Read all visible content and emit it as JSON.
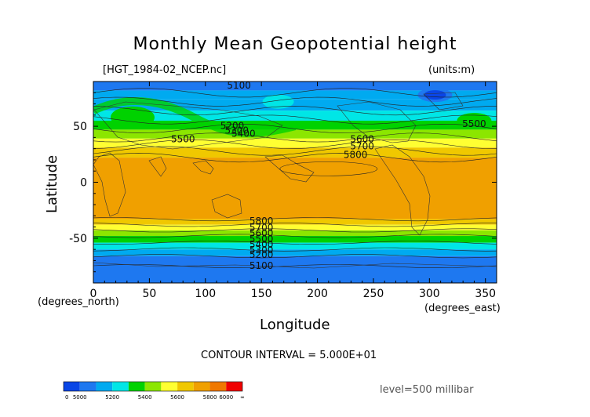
{
  "chart_data": {
    "type": "heatmap",
    "title": "Monthly Mean Geopotential height",
    "file_label": "[HGT_1984-02_NCEP.nc]",
    "units_label": "(units:m)",
    "xlabel": "Longitude",
    "ylabel": "Latitude",
    "x_unit_label": "(degrees_east)",
    "y_unit_label": "(degrees_north)",
    "xlim": [
      0,
      360
    ],
    "ylim": [
      -90,
      90
    ],
    "x_ticks": [
      "0",
      "50",
      "100",
      "150",
      "200",
      "250",
      "300",
      "350"
    ],
    "y_ticks": [
      "50",
      "0",
      "-50"
    ],
    "contour_interval_text": "CONTOUR INTERVAL = 5.000E+01",
    "level_text": "level=500 millibar",
    "contour_labels": [
      {
        "text": "5100",
        "lon": 130,
        "lat": 86
      },
      {
        "text": "5200",
        "lon": 124,
        "lat": 50
      },
      {
        "text": "5300",
        "lon": 128,
        "lat": 46
      },
      {
        "text": "5400",
        "lon": 134,
        "lat": 43
      },
      {
        "text": "5500",
        "lon": 80,
        "lat": 38
      },
      {
        "text": "5500",
        "lon": 340,
        "lat": 52
      },
      {
        "text": "5600",
        "lon": 240,
        "lat": 38
      },
      {
        "text": "5700",
        "lon": 240,
        "lat": 32
      },
      {
        "text": "5800",
        "lon": 234,
        "lat": 24
      },
      {
        "text": "5800",
        "lon": 150,
        "lat": -35
      },
      {
        "text": "5700",
        "lon": 150,
        "lat": -41
      },
      {
        "text": "5600",
        "lon": 150,
        "lat": -46
      },
      {
        "text": "5500",
        "lon": 150,
        "lat": -51
      },
      {
        "text": "5400",
        "lon": 150,
        "lat": -56
      },
      {
        "text": "5300",
        "lon": 150,
        "lat": -61
      },
      {
        "text": "5200",
        "lon": 150,
        "lat": -65
      },
      {
        "text": "5100",
        "lon": 150,
        "lat": -75
      }
    ],
    "colorbar": {
      "levels": [
        "0",
        "5000",
        "5200",
        "5400",
        "5600",
        "5800",
        "6000",
        "∞"
      ],
      "colors": [
        "#0a46e6",
        "#1e78f0",
        "#00aaf0",
        "#00e6e6",
        "#00d200",
        "#8ce600",
        "#ffff32",
        "#f0c800",
        "#f0a000",
        "#f07800",
        "#f00000"
      ]
    }
  }
}
